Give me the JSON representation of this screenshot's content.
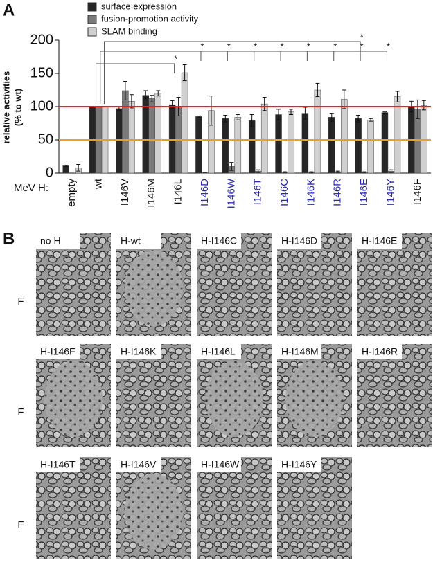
{
  "chart_data": {
    "type": "bar",
    "panel": "A",
    "x_label": "MeV H:",
    "y_label": [
      "relative activities",
      "(% to wt)"
    ],
    "categories": [
      "empty",
      "wt",
      "I146V",
      "I146M",
      "I146L",
      "I146D",
      "I146W",
      "I146T",
      "I146C",
      "I146K",
      "I146R",
      "I146E",
      "I146Y",
      "I146F"
    ],
    "category_colors": [
      "#111",
      "#111",
      "#111",
      "#111",
      "#111",
      "#2b2bb3",
      "#2b2bb3",
      "#2b2bb3",
      "#2b2bb3",
      "#2b2bb3",
      "#2b2bb3",
      "#2b2bb3",
      "#2b2bb3",
      "#111"
    ],
    "series": [
      {
        "name": "surface expression",
        "color": "#262626",
        "values": [
          11,
          100,
          97,
          117,
          103,
          85,
          82,
          79,
          88,
          90,
          84,
          82,
          91,
          100
        ],
        "errors": [
          1,
          0,
          3,
          7,
          6,
          1,
          5,
          9,
          8,
          9,
          6,
          5,
          1,
          8
        ]
      },
      {
        "name": "fusion-promotion activity",
        "color": "#7a7a7a",
        "values": [
          0,
          100,
          124,
          112,
          100,
          1,
          10,
          3,
          1,
          1,
          2,
          1,
          3,
          96
        ],
        "errors": [
          0,
          0,
          14,
          5,
          14,
          0,
          6,
          2,
          1,
          1,
          1,
          1,
          2,
          14
        ]
      },
      {
        "name": "SLAM binding",
        "color": "#d0d0d0",
        "values": [
          8,
          100,
          108,
          120,
          151,
          94,
          84,
          104,
          92,
          125,
          111,
          80,
          115,
          102
        ],
        "errors": [
          5,
          0,
          10,
          4,
          12,
          22,
          4,
          10,
          4,
          10,
          14,
          2,
          8,
          7
        ]
      }
    ],
    "ylim": [
      0,
      200
    ],
    "yticks": [
      0,
      50,
      100,
      150,
      200
    ],
    "reference_lines": [
      {
        "value": 100,
        "color": "#e8201f"
      },
      {
        "value": 50,
        "color": "#f0a020"
      }
    ],
    "significance": [
      {
        "from": 1,
        "to": 4,
        "label": "*"
      },
      {
        "from": 1,
        "to": 5,
        "label": "*"
      },
      {
        "from": 1,
        "to": 6,
        "label": "*"
      },
      {
        "from": 1,
        "to": 7,
        "label": "*"
      },
      {
        "from": 1,
        "to": 8,
        "label": "*"
      },
      {
        "from": 1,
        "to": 9,
        "label": "*"
      },
      {
        "from": 1,
        "to": 10,
        "label": "*"
      },
      {
        "from": 1,
        "to": 11,
        "label": "*"
      },
      {
        "from": 1,
        "to": 12,
        "label": "*"
      },
      {
        "from": 1,
        "to": 11,
        "label": "*"
      }
    ]
  },
  "panel_b": {
    "panel": "B",
    "row_labels": [
      "F",
      "F",
      "F"
    ],
    "rows": [
      [
        "no H",
        "H-wt",
        "H-I146C",
        "H-I146D",
        "H-I146E"
      ],
      [
        "H-I146F",
        "H-I146K",
        "H-I146L",
        "H-I146M",
        "H-I146R"
      ],
      [
        "H-I146T",
        "H-I146V",
        "H-I146W",
        "H-I146Y"
      ]
    ]
  }
}
